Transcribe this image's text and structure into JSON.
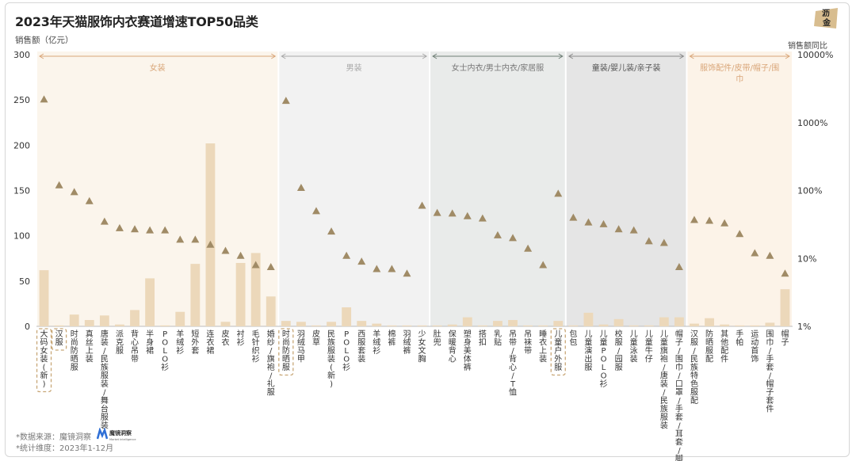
{
  "title": "2023年天猫服饰内衣赛道增速TOP50品类",
  "y_label": "销售额（亿元）",
  "y2_label": "销售额同比",
  "logo_text": "沥金",
  "notes": {
    "source": "*数据来源：魔镜洞察",
    "period": "*统计维度：2023年1-12月"
  },
  "brand": {
    "name": "魔镜洞察",
    "sub": "Market Intelligence"
  },
  "colors": {
    "bar": "#ecd8ba",
    "marker": "#a08b66",
    "highlight": "#c8a777"
  },
  "chart_data": {
    "type": "bar+scatter",
    "title": "2023年天猫服饰内衣赛道增速TOP50品类",
    "ylabel": "销售额（亿元）",
    "y2label": "销售额同比",
    "ylim": [
      0,
      300
    ],
    "yticks": [
      "0",
      "50",
      "100",
      "150",
      "200",
      "250",
      "300"
    ],
    "y2lim_log": [
      1,
      10000
    ],
    "y2ticks": [
      "1%",
      "10%",
      "100%",
      "1000%",
      "10000%"
    ],
    "groups": [
      {
        "name": "女装",
        "start": 0,
        "end": 15,
        "bg": "#fbf5ec",
        "line": "#d9a679",
        "text": "#d9a679"
      },
      {
        "name": "男装",
        "start": 16,
        "end": 25,
        "bg": "#f2f2f2",
        "line": "#a8a8a8",
        "text": "#a8a8a8"
      },
      {
        "name": "女士内衣/男士内衣/家居服",
        "start": 26,
        "end": 34,
        "bg": "#e9ebea",
        "line": "#6f7f76",
        "text": "#777"
      },
      {
        "name": "童装/婴儿装/亲子装",
        "start": 35,
        "end": 42,
        "bg": "#e5e5e5",
        "line": "#8a8a8a",
        "text": "#555"
      },
      {
        "name": "服饰配件/皮带/帽子/围巾",
        "start": 43,
        "end": 49,
        "bg": "#fcf3e8",
        "line": "#d9a679",
        "text": "#d9a679"
      }
    ],
    "categories": [
      "大码女装(新)",
      "汉服",
      "时尚防晒服",
      "真丝上装",
      "唐装/民族服装/舞台服装",
      "派克服",
      "背心吊带",
      "半身裙",
      "POLO衫",
      "羊绒衫",
      "短外套",
      "连衣裙",
      "皮衣",
      "衬衫",
      "毛针织衫",
      "婚纱/旗袍/礼服",
      "时尚防晒服",
      "羽绒马甲",
      "皮草",
      "民族服装(新)",
      "POLO衫",
      "西服套装",
      "羊绒衫",
      "棉裤",
      "羽绒裤",
      "少女文胸",
      "肚兜",
      "保暖背心",
      "塑身美体裤",
      "搭扣",
      "乳贴",
      "吊带/背心/T恤",
      "吊袜带",
      "睡衣上装",
      "儿童户外服",
      "包包",
      "儿童演出服",
      "儿童POLO衫",
      "校服/园服",
      "儿童泳装",
      "儿童牛仔",
      "儿童旗袍/唐装/民族服装",
      "帽子/围巾/口罩/手套/耳套/脚套",
      "汉服/民族特色服配",
      "防晒服配",
      "其他配件",
      "手帕",
      "运动首饰",
      "围巾/手套/帽子套件",
      "帽子"
    ],
    "sales": [
      62,
      1,
      13,
      7,
      12,
      2,
      18,
      53,
      1,
      16,
      69,
      202,
      5,
      70,
      81,
      33,
      6,
      5,
      1,
      5,
      21,
      6,
      3,
      1,
      1,
      1,
      1,
      2,
      10,
      1,
      6,
      7,
      1,
      1,
      6,
      1,
      15,
      2,
      8,
      1,
      1,
      10,
      10,
      3,
      9,
      2,
      1,
      1,
      4,
      41
    ],
    "yoy_pct": [
      2200,
      120,
      95,
      70,
      35,
      28,
      27,
      26,
      26,
      19,
      19,
      16,
      13,
      11,
      8,
      7.5,
      2100,
      110,
      50,
      25,
      11,
      9,
      7,
      7,
      6,
      60,
      47,
      46,
      42,
      39,
      22,
      20,
      14,
      8,
      90,
      40,
      34,
      32,
      27,
      26,
      18,
      17,
      7.5,
      37,
      36,
      33,
      23,
      12,
      11,
      6
    ]
  }
}
